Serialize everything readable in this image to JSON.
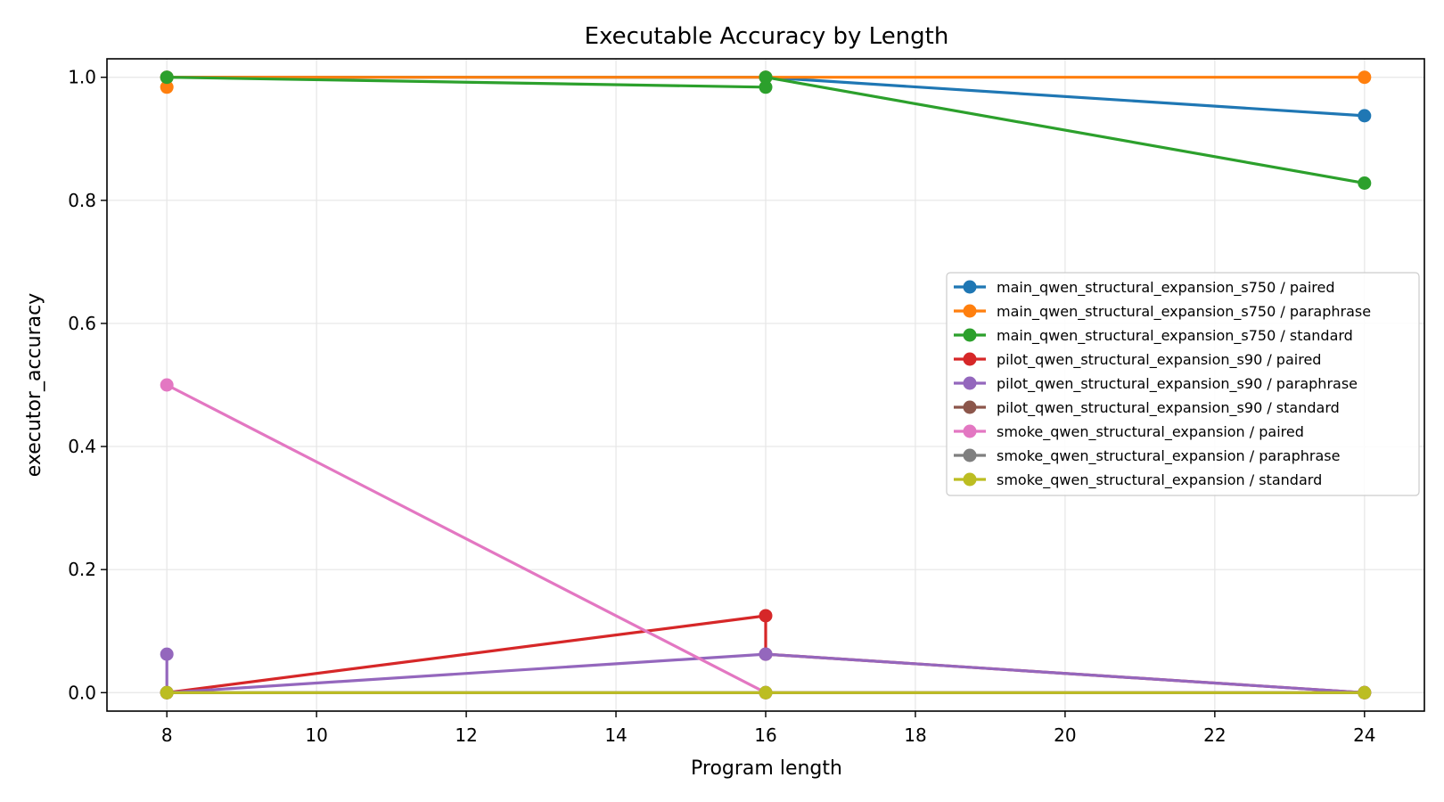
{
  "chart_data": {
    "type": "line",
    "title": "Executable Accuracy by Length",
    "xlabel": "Program length",
    "ylabel": "executor_accuracy",
    "xlim": [
      7.2,
      24.8
    ],
    "ylim": [
      -0.03,
      1.03
    ],
    "xticks": [
      8,
      10,
      12,
      14,
      16,
      18,
      20,
      22,
      24
    ],
    "yticks": [
      0.0,
      0.2,
      0.4,
      0.6,
      0.8,
      1.0
    ],
    "xtick_labels": [
      "8",
      "10",
      "12",
      "14",
      "16",
      "18",
      "20",
      "22",
      "24"
    ],
    "ytick_labels": [
      "0.0",
      "0.2",
      "0.4",
      "0.6",
      "0.8",
      "1.0"
    ],
    "grid": true,
    "legend_position": "center-right",
    "series": [
      {
        "name": "main_qwen_structural_expansion_s750 / paired",
        "color": "#1f77b4",
        "x": [
          8,
          16,
          24
        ],
        "y": [
          1.0,
          1.0,
          0.9375
        ]
      },
      {
        "name": "main_qwen_structural_expansion_s750 / paraphrase",
        "color": "#ff7f0e",
        "x": [
          8,
          8,
          16,
          24
        ],
        "y": [
          0.984,
          1.0,
          1.0,
          1.0
        ]
      },
      {
        "name": "main_qwen_structural_expansion_s750 / standard",
        "color": "#2ca02c",
        "x": [
          8,
          16,
          16,
          24
        ],
        "y": [
          1.0,
          0.984,
          1.0,
          0.828
        ]
      },
      {
        "name": "pilot_qwen_structural_expansion_s90 / paired",
        "color": "#d62728",
        "x": [
          8,
          16,
          16,
          24
        ],
        "y": [
          0.0,
          0.125,
          0.0625,
          0.0
        ]
      },
      {
        "name": "pilot_qwen_structural_expansion_s90 / paraphrase",
        "color": "#9467bd",
        "x": [
          8,
          8,
          16,
          16,
          24
        ],
        "y": [
          0.0625,
          0.0,
          0.0625,
          0.0625,
          0.0
        ]
      },
      {
        "name": "pilot_qwen_structural_expansion_s90 / standard",
        "color": "#8c564b",
        "x": [
          8,
          16,
          24
        ],
        "y": [
          0.0,
          0.0,
          0.0
        ]
      },
      {
        "name": "smoke_qwen_structural_expansion / paired",
        "color": "#e377c2",
        "x": [
          8,
          16,
          24
        ],
        "y": [
          0.5,
          0.0,
          0.0
        ]
      },
      {
        "name": "smoke_qwen_structural_expansion / paraphrase",
        "color": "#7f7f7f",
        "x": [
          8,
          16,
          24
        ],
        "y": [
          0.0,
          0.0,
          0.0
        ]
      },
      {
        "name": "smoke_qwen_structural_expansion / standard",
        "color": "#bcbd22",
        "x": [
          8,
          16,
          24
        ],
        "y": [
          0.0,
          0.0,
          0.0
        ]
      }
    ]
  }
}
